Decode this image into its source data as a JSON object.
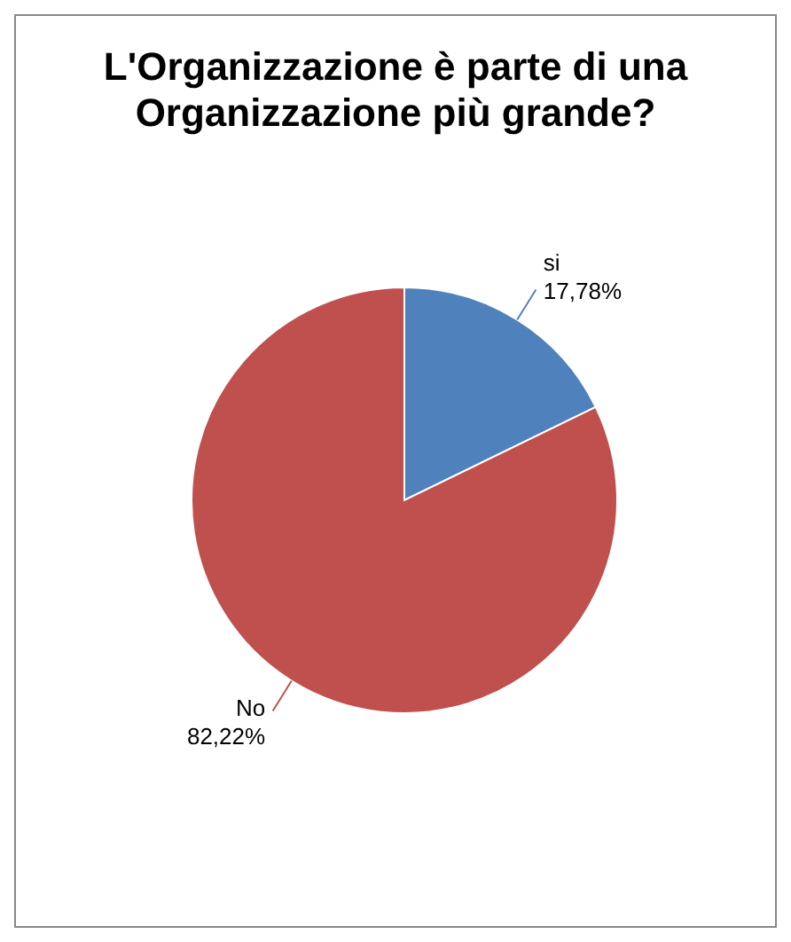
{
  "chart_data": {
    "type": "pie",
    "title": "L'Organizzazione è parte di una Organizzazione più grande?",
    "categories": [
      "si",
      "No"
    ],
    "values": [
      17.78,
      82.22
    ],
    "colors": [
      "#4f81bd",
      "#c0504d"
    ],
    "value_labels": [
      "17,78%",
      "82,22%"
    ]
  }
}
